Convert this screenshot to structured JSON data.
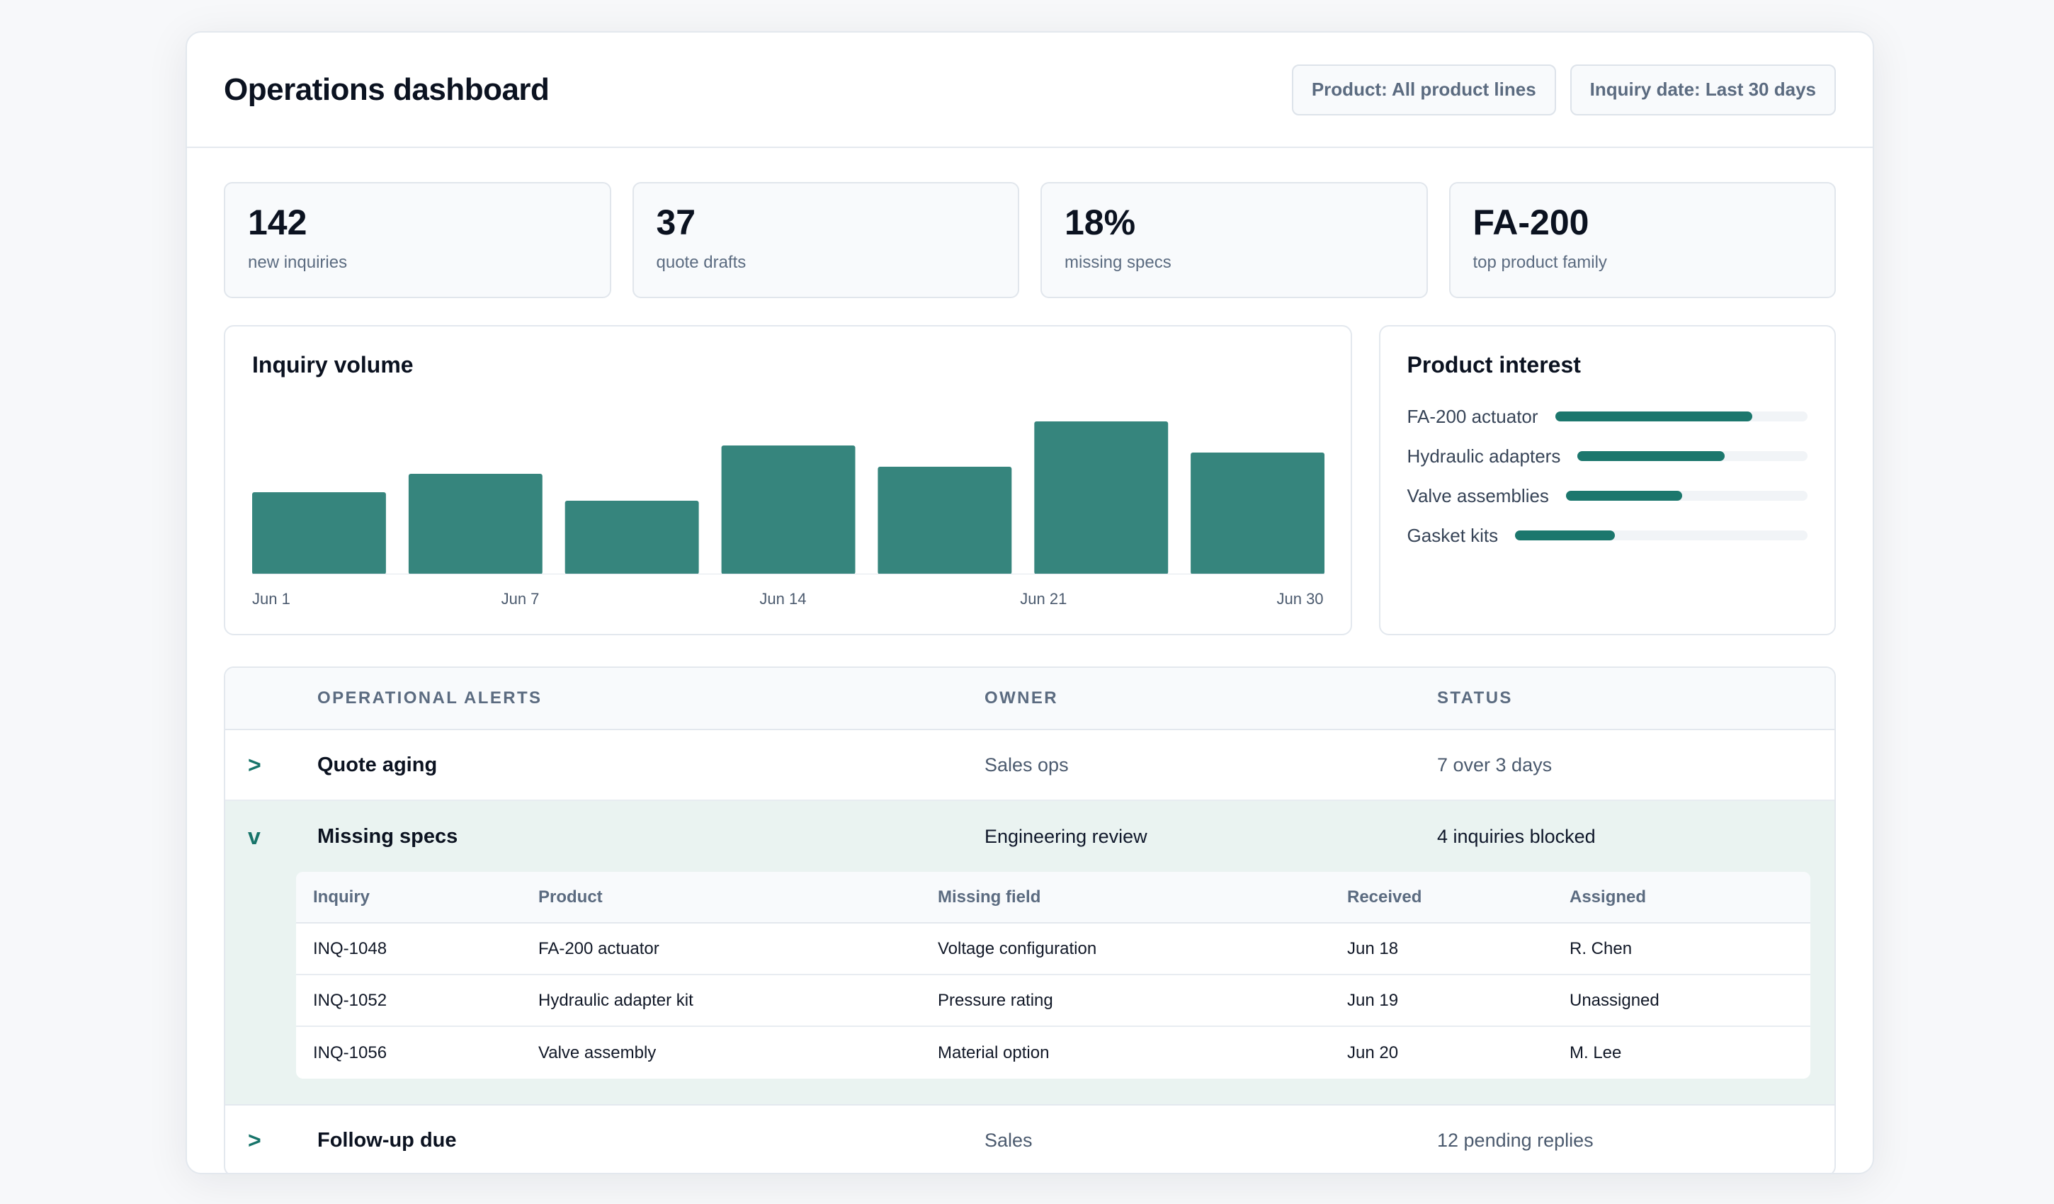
{
  "header": {
    "title": "Operations dashboard",
    "filters": [
      {
        "label": "Product: All product lines"
      },
      {
        "label": "Inquiry date: Last 30 days"
      }
    ]
  },
  "kpis": [
    {
      "value": "142",
      "label": "new inquiries"
    },
    {
      "value": "37",
      "label": "quote drafts"
    },
    {
      "value": "18%",
      "label": "missing specs"
    },
    {
      "value": "FA-200",
      "label": "top product family"
    }
  ],
  "volume": {
    "title": "Inquiry volume",
    "x_labels": [
      "Jun 1",
      "Jun 7",
      "Jun 14",
      "Jun 21",
      "Jun 30"
    ]
  },
  "chart_data": {
    "type": "bar",
    "title": "Inquiry volume",
    "x_tick_labels": [
      "Jun 1",
      "Jun 7",
      "Jun 14",
      "Jun 21",
      "Jun 30"
    ],
    "values": [
      58,
      71,
      52,
      91,
      76,
      108,
      86
    ],
    "ylim": [
      0,
      125
    ],
    "color": "#36857d",
    "grid": false
  },
  "interest": {
    "title": "Product interest",
    "items": [
      {
        "label": "FA-200 actuator",
        "share": 0.78
      },
      {
        "label": "Hydraulic adapters",
        "share": 0.64
      },
      {
        "label": "Valve assemblies",
        "share": 0.48
      },
      {
        "label": "Gasket kits",
        "share": 0.34
      }
    ],
    "color": "#1c776d"
  },
  "alerts": {
    "headers": {
      "alert": "OPERATIONAL ALERTS",
      "owner": "OWNER",
      "status": "STATUS"
    },
    "rows": [
      {
        "caret": ">",
        "title": "Quote aging",
        "owner": "Sales ops",
        "status": "7 over 3 days"
      },
      {
        "caret": "v",
        "title": "Missing specs",
        "owner": "Engineering review",
        "status": "4 inquiries blocked"
      },
      {
        "caret": ">",
        "title": "Follow-up due",
        "owner": "Sales",
        "status": "12 pending replies"
      }
    ],
    "detail": {
      "headers": [
        "Inquiry",
        "Product",
        "Missing field",
        "Received",
        "Assigned"
      ],
      "rows": [
        [
          "INQ-1048",
          "FA-200 actuator",
          "Voltage configuration",
          "Jun 18",
          "R. Chen"
        ],
        [
          "INQ-1052",
          "Hydraulic adapter kit",
          "Pressure rating",
          "Jun 19",
          "Unassigned"
        ],
        [
          "INQ-1056",
          "Valve assembly",
          "Material option",
          "Jun 20",
          "M. Lee"
        ]
      ]
    }
  }
}
